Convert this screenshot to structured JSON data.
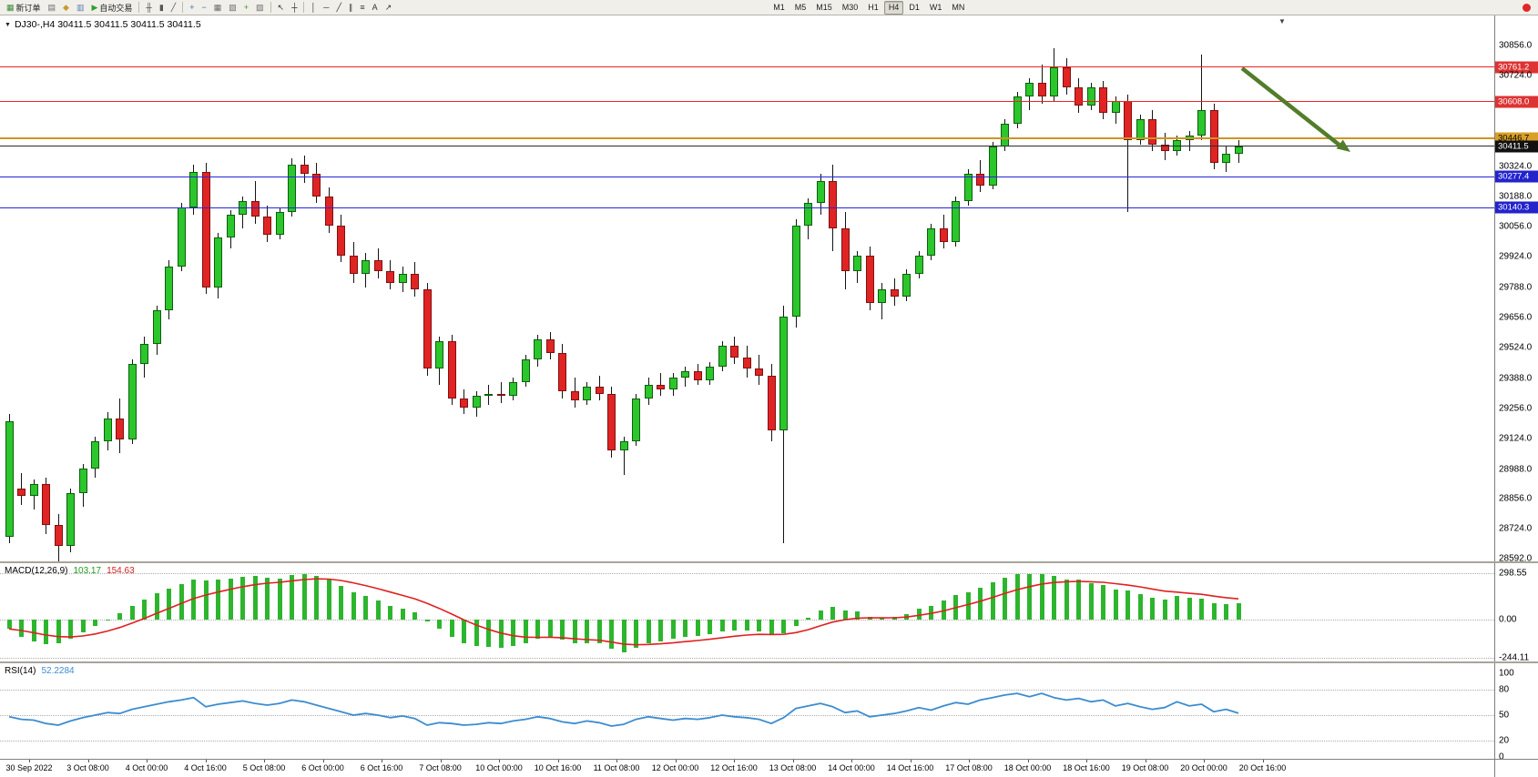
{
  "app": {
    "toolbar": {
      "alert_color": "#e02828",
      "items": [
        {
          "name": "new-order-button",
          "glyph": "▦",
          "glyph_color": "#3a8a3a",
          "label": "新订单"
        },
        {
          "name": "charts-button",
          "glyph": "▤",
          "glyph_color": "#6b6b6b"
        },
        {
          "name": "profiles-button",
          "glyph": "◆",
          "glyph_color": "#c79a2d"
        },
        {
          "name": "data-window-button",
          "glyph": "▥",
          "glyph_color": "#5a7fb5"
        },
        {
          "name": "autotrading-button",
          "glyph": "▶",
          "glyph_color": "#30a030",
          "label": "自动交易"
        },
        {
          "type": "sep"
        },
        {
          "name": "bar-chart-button",
          "glyph": "╫",
          "glyph_color": "#555555"
        },
        {
          "name": "candlestick-chart-button",
          "glyph": "▮",
          "glyph_color": "#555555"
        },
        {
          "name": "line-chart-button",
          "glyph": "╱",
          "glyph_color": "#555555"
        },
        {
          "type": "sep"
        },
        {
          "name": "zoom-in-button",
          "glyph": "+",
          "glyph_color": "#2f6fbf"
        },
        {
          "name": "zoom-out-button",
          "glyph": "−",
          "glyph_color": "#2f6fbf"
        },
        {
          "name": "tile-windows-button",
          "glyph": "▦",
          "glyph_color": "#6b6b6b"
        },
        {
          "name": "auto-arrange-button",
          "glyph": "▧",
          "glyph_color": "#6b6b6b"
        },
        {
          "name": "indicators-button",
          "glyph": "+",
          "glyph_color": "#2f9f2f"
        },
        {
          "name": "templates-button",
          "glyph": "▨",
          "glyph_color": "#6b6b6b"
        },
        {
          "type": "sep"
        },
        {
          "name": "cursor-button",
          "glyph": "↖",
          "glyph_color": "#333333"
        },
        {
          "name": "crosshair-button",
          "glyph": "┼",
          "glyph_color": "#333333"
        },
        {
          "type": "sep"
        },
        {
          "name": "vertical-line-button",
          "glyph": "│",
          "glyph_color": "#333333"
        },
        {
          "name": "horizontal-line-button",
          "glyph": "─",
          "glyph_color": "#333333"
        },
        {
          "name": "trendline-button",
          "glyph": "╱",
          "glyph_color": "#333333"
        },
        {
          "name": "channel-button",
          "glyph": "∥",
          "glyph_color": "#333333"
        },
        {
          "name": "fibonacci-button",
          "glyph": "≡",
          "glyph_color": "#333333"
        },
        {
          "name": "text-button",
          "glyph": "A",
          "glyph_color": "#333333"
        },
        {
          "name": "arrows-button",
          "glyph": "↗",
          "glyph_color": "#333333"
        },
        {
          "type": "gap"
        }
      ],
      "timeframes": [
        {
          "label": "M1"
        },
        {
          "label": "M5"
        },
        {
          "label": "M15"
        },
        {
          "label": "M30"
        },
        {
          "label": "H1"
        },
        {
          "label": "H4",
          "pressed": true
        },
        {
          "label": "D1"
        },
        {
          "label": "W1"
        },
        {
          "label": "MN"
        }
      ]
    }
  },
  "chart": {
    "dropdown_marker": "▼",
    "title": "DJ30-,H4 30411.5 30411.5 30411.5 30411.5",
    "shift_marker": "▼"
  },
  "indicators": {
    "macd_label": "MACD(12,26,9)",
    "macd_value1": "103.17",
    "macd_value2": "154.63",
    "rsi_label": "RSI(14)",
    "rsi_value": "52.2284"
  },
  "chart_data": {
    "type": "candlestick",
    "symbol": "DJ30-",
    "timeframe": "H4",
    "ohlc_current": [
      30411.5,
      30411.5,
      30411.5,
      30411.5
    ],
    "ylim": [
      28592.0,
      30856.0
    ],
    "up_color": "#2bc62b",
    "down_color": "#e02424",
    "wick_color": "#141414",
    "y_ticks": [
      30856,
      30724,
      30324,
      30188,
      30056,
      29924,
      29788,
      29656,
      29524,
      29388,
      29256,
      29124,
      28988,
      28856,
      28724,
      28592
    ],
    "hlines": [
      {
        "price": 30761.2,
        "label": "30761.2",
        "color": "#ee2222",
        "width": 1,
        "dash": false,
        "badge_bg": "#dd3333",
        "badge_fg": "#ffffff"
      },
      {
        "price": 30608.0,
        "label": "30608.0",
        "color": "#ee2222",
        "width": 1,
        "dash": false,
        "badge_bg": "#dd3333",
        "badge_fg": "#ffffff"
      },
      {
        "price": 30446.7,
        "label": "30446.7",
        "color": "#cf9422",
        "width": 2,
        "dash": false,
        "badge_bg": "#d9a027",
        "badge_fg": "#000000"
      },
      {
        "price": 30411.5,
        "label": "30411.5",
        "color": "#2b2b2b",
        "width": 1,
        "dash": false,
        "badge_bg": "#111111",
        "badge_fg": "#ffffff"
      },
      {
        "price": 30277.4,
        "label": "30277.4",
        "color": "#2626d8",
        "width": 1,
        "dash": false,
        "badge_bg": "#2323cc",
        "badge_fg": "#ffffff"
      },
      {
        "price": 30140.3,
        "label": "30140.3",
        "color": "#2626d8",
        "width": 1,
        "dash": false,
        "badge_bg": "#2323cc",
        "badge_fg": "#ffffff"
      }
    ],
    "annotations": [
      {
        "type": "arrow",
        "direction": "down-right",
        "color": "#527d2a",
        "from_price": 30755,
        "to_price": 30390
      }
    ],
    "x_labels": [
      "30 Sep 2022",
      "3 Oct 08:00",
      "4 Oct 00:00",
      "4 Oct 16:00",
      "5 Oct 08:00",
      "6 Oct 00:00",
      "6 Oct 16:00",
      "7 Oct 08:00",
      "10 Oct 00:00",
      "10 Oct 16:00",
      "11 Oct 08:00",
      "12 Oct 00:00",
      "12 Oct 16:00",
      "13 Oct 08:00",
      "14 Oct 00:00",
      "14 Oct 16:00",
      "17 Oct 08:00",
      "18 Oct 00:00",
      "18 Oct 16:00",
      "19 Oct 08:00",
      "20 Oct 00:00",
      "20 Oct 16:00"
    ],
    "candles": [
      [
        28690,
        29230,
        28660,
        29200
      ],
      [
        28900,
        28970,
        28830,
        28870
      ],
      [
        28870,
        28940,
        28810,
        28920
      ],
      [
        28920,
        28950,
        28700,
        28740
      ],
      [
        28740,
        28790,
        28580,
        28650
      ],
      [
        28650,
        28900,
        28620,
        28880
      ],
      [
        28880,
        29010,
        28820,
        28990
      ],
      [
        28990,
        29130,
        28950,
        29110
      ],
      [
        29110,
        29240,
        29070,
        29210
      ],
      [
        29210,
        29300,
        29060,
        29120
      ],
      [
        29120,
        29470,
        29100,
        29450
      ],
      [
        29450,
        29570,
        29390,
        29540
      ],
      [
        29540,
        29710,
        29490,
        29690
      ],
      [
        29690,
        29910,
        29650,
        29880
      ],
      [
        29880,
        30160,
        29860,
        30140
      ],
      [
        30140,
        30330,
        30110,
        30300
      ],
      [
        30300,
        30340,
        29760,
        29790
      ],
      [
        29790,
        30030,
        29740,
        30010
      ],
      [
        30010,
        30130,
        29960,
        30110
      ],
      [
        30110,
        30190,
        30050,
        30170
      ],
      [
        30170,
        30260,
        30070,
        30100
      ],
      [
        30100,
        30150,
        29990,
        30020
      ],
      [
        30020,
        30140,
        30000,
        30120
      ],
      [
        30120,
        30360,
        30100,
        30330
      ],
      [
        30330,
        30370,
        30250,
        30290
      ],
      [
        30290,
        30340,
        30160,
        30190
      ],
      [
        30190,
        30230,
        30030,
        30060
      ],
      [
        30060,
        30110,
        29900,
        29930
      ],
      [
        29930,
        29990,
        29810,
        29850
      ],
      [
        29850,
        29940,
        29790,
        29910
      ],
      [
        29910,
        29960,
        29830,
        29860
      ],
      [
        29860,
        29910,
        29780,
        29810
      ],
      [
        29810,
        29880,
        29770,
        29850
      ],
      [
        29850,
        29900,
        29750,
        29780
      ],
      [
        29780,
        29810,
        29400,
        29430
      ],
      [
        29430,
        29570,
        29360,
        29550
      ],
      [
        29550,
        29580,
        29270,
        29300
      ],
      [
        29300,
        29340,
        29230,
        29260
      ],
      [
        29260,
        29330,
        29220,
        29310
      ],
      [
        29310,
        29360,
        29270,
        29320
      ],
      [
        29320,
        29370,
        29280,
        29310
      ],
      [
        29310,
        29390,
        29290,
        29370
      ],
      [
        29370,
        29490,
        29350,
        29470
      ],
      [
        29470,
        29580,
        29440,
        29560
      ],
      [
        29560,
        29590,
        29470,
        29500
      ],
      [
        29500,
        29540,
        29300,
        29330
      ],
      [
        29330,
        29390,
        29260,
        29290
      ],
      [
        29290,
        29370,
        29270,
        29350
      ],
      [
        29350,
        29400,
        29290,
        29320
      ],
      [
        29320,
        29350,
        29040,
        29070
      ],
      [
        29070,
        29130,
        28960,
        29110
      ],
      [
        29110,
        29320,
        29090,
        29300
      ],
      [
        29300,
        29390,
        29270,
        29360
      ],
      [
        29360,
        29410,
        29310,
        29340
      ],
      [
        29340,
        29410,
        29310,
        29390
      ],
      [
        29390,
        29440,
        29350,
        29420
      ],
      [
        29420,
        29450,
        29360,
        29380
      ],
      [
        29380,
        29460,
        29360,
        29440
      ],
      [
        29440,
        29550,
        29420,
        29530
      ],
      [
        29530,
        29570,
        29450,
        29480
      ],
      [
        29480,
        29530,
        29390,
        29430
      ],
      [
        29430,
        29490,
        29360,
        29400
      ],
      [
        29400,
        29450,
        29110,
        29160
      ],
      [
        29160,
        29710,
        28660,
        29660
      ],
      [
        29660,
        30090,
        29610,
        30060
      ],
      [
        30060,
        30180,
        30000,
        30160
      ],
      [
        30160,
        30290,
        30110,
        30260
      ],
      [
        30260,
        30330,
        29950,
        30050
      ],
      [
        30050,
        30120,
        29780,
        29860
      ],
      [
        29860,
        29950,
        29810,
        29930
      ],
      [
        29930,
        29970,
        29690,
        29720
      ],
      [
        29720,
        29810,
        29650,
        29780
      ],
      [
        29780,
        29830,
        29710,
        29750
      ],
      [
        29750,
        29870,
        29730,
        29850
      ],
      [
        29850,
        29950,
        29830,
        29930
      ],
      [
        29930,
        30070,
        29910,
        30050
      ],
      [
        30050,
        30110,
        29960,
        29990
      ],
      [
        29990,
        30190,
        29970,
        30170
      ],
      [
        30170,
        30310,
        30150,
        30290
      ],
      [
        30290,
        30350,
        30210,
        30240
      ],
      [
        30240,
        30430,
        30220,
        30410
      ],
      [
        30410,
        30530,
        30390,
        30510
      ],
      [
        30510,
        30650,
        30490,
        30630
      ],
      [
        30630,
        30710,
        30570,
        30690
      ],
      [
        30690,
        30770,
        30600,
        30630
      ],
      [
        30630,
        30845,
        30610,
        30760
      ],
      [
        30760,
        30800,
        30640,
        30670
      ],
      [
        30670,
        30710,
        30560,
        30590
      ],
      [
        30590,
        30690,
        30570,
        30670
      ],
      [
        30670,
        30700,
        30530,
        30560
      ],
      [
        30560,
        30630,
        30510,
        30610
      ],
      [
        30610,
        30640,
        30120,
        30440
      ],
      [
        30440,
        30550,
        30420,
        30530
      ],
      [
        30530,
        30570,
        30390,
        30420
      ],
      [
        30420,
        30470,
        30350,
        30390
      ],
      [
        30390,
        30460,
        30370,
        30440
      ],
      [
        30440,
        30480,
        30390,
        30460
      ],
      [
        30460,
        30815,
        30440,
        30570
      ],
      [
        30570,
        30600,
        30310,
        30340
      ],
      [
        30340,
        30410,
        30300,
        30380
      ],
      [
        30380,
        30440,
        30340,
        30411.5
      ]
    ],
    "macd": {
      "params": "12,26,9",
      "current_main": 103.17,
      "current_signal": 154.63,
      "axis": [
        298.55,
        0,
        -244.11
      ],
      "histogram_color": "#2db52d",
      "signal_color": "#e02020",
      "values": [
        -60,
        -110,
        -140,
        -160,
        -150,
        -120,
        -80,
        -40,
        0,
        40,
        90,
        130,
        170,
        200,
        230,
        260,
        250,
        255,
        265,
        275,
        280,
        270,
        265,
        285,
        290,
        280,
        255,
        215,
        175,
        150,
        120,
        90,
        70,
        45,
        -10,
        -60,
        -110,
        -150,
        -170,
        -175,
        -180,
        -170,
        -150,
        -120,
        -110,
        -130,
        -150,
        -150,
        -150,
        -190,
        -210,
        -180,
        -150,
        -140,
        -125,
        -110,
        -105,
        -95,
        -75,
        -70,
        -70,
        -75,
        -100,
        -90,
        -40,
        10,
        60,
        80,
        60,
        50,
        20,
        10,
        15,
        35,
        70,
        90,
        120,
        160,
        175,
        205,
        240,
        270,
        290,
        290,
        295,
        280,
        260,
        255,
        235,
        225,
        195,
        185,
        165,
        140,
        130,
        150,
        140,
        135,
        105,
        100,
        103.17
      ]
    },
    "rsi": {
      "period": 14,
      "current": 52.2284,
      "axis": [
        100,
        80,
        50,
        20,
        0
      ],
      "levels": [
        80,
        50,
        20
      ],
      "line_color": "#3c8cd0",
      "values": [
        48,
        45,
        44,
        40,
        38,
        43,
        47,
        50,
        53,
        52,
        57,
        60,
        63,
        66,
        68,
        71,
        60,
        63,
        65,
        67,
        64,
        62,
        64,
        68,
        66,
        62,
        58,
        54,
        50,
        52,
        50,
        47,
        49,
        46,
        38,
        41,
        40,
        38,
        39,
        41,
        40,
        43,
        45,
        48,
        46,
        42,
        40,
        43,
        41,
        37,
        39,
        45,
        48,
        46,
        44,
        46,
        45,
        47,
        50,
        48,
        47,
        45,
        40,
        47,
        58,
        61,
        64,
        60,
        53,
        55,
        48,
        50,
        52,
        55,
        59,
        56,
        61,
        65,
        63,
        68,
        71,
        74,
        76,
        72,
        76,
        71,
        68,
        70,
        66,
        68,
        61,
        64,
        60,
        57,
        59,
        66,
        61,
        63,
        54,
        57,
        52.23
      ]
    }
  }
}
